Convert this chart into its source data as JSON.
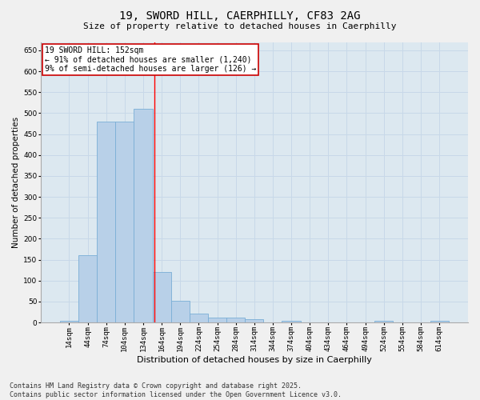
{
  "title_line1": "19, SWORD HILL, CAERPHILLY, CF83 2AG",
  "title_line2": "Size of property relative to detached houses in Caerphilly",
  "xlabel": "Distribution of detached houses by size in Caerphilly",
  "ylabel": "Number of detached properties",
  "footnote": "Contains HM Land Registry data © Crown copyright and database right 2025.\nContains public sector information licensed under the Open Government Licence v3.0.",
  "bar_color": "#b8d0e8",
  "bar_edge_color": "#7aaed6",
  "categories": [
    "14sqm",
    "44sqm",
    "74sqm",
    "104sqm",
    "134sqm",
    "164sqm",
    "194sqm",
    "224sqm",
    "254sqm",
    "284sqm",
    "314sqm",
    "344sqm",
    "374sqm",
    "404sqm",
    "434sqm",
    "464sqm",
    "494sqm",
    "524sqm",
    "554sqm",
    "584sqm",
    "614sqm"
  ],
  "values": [
    3,
    160,
    480,
    480,
    510,
    120,
    52,
    22,
    12,
    12,
    8,
    0,
    4,
    0,
    0,
    0,
    0,
    4,
    0,
    0,
    3
  ],
  "ylim": [
    0,
    670
  ],
  "yticks": [
    0,
    50,
    100,
    150,
    200,
    250,
    300,
    350,
    400,
    450,
    500,
    550,
    600,
    650
  ],
  "redline_x": 4.6,
  "redline_label": "19 SWORD HILL: 152sqm",
  "annotation_line1": "← 91% of detached houses are smaller (1,240)",
  "annotation_line2": "9% of semi-detached houses are larger (126) →",
  "annotation_box_color": "#ffffff",
  "annotation_box_edge_color": "#cc0000",
  "grid_color": "#c8d8e8",
  "bg_color": "#dce8f0",
  "fig_bg_color": "#f0f0f0",
  "title_fontsize": 10,
  "subtitle_fontsize": 8,
  "tick_fontsize": 6.5,
  "ylabel_fontsize": 7.5,
  "xlabel_fontsize": 8,
  "footnote_fontsize": 6,
  "ann_fontsize": 7
}
